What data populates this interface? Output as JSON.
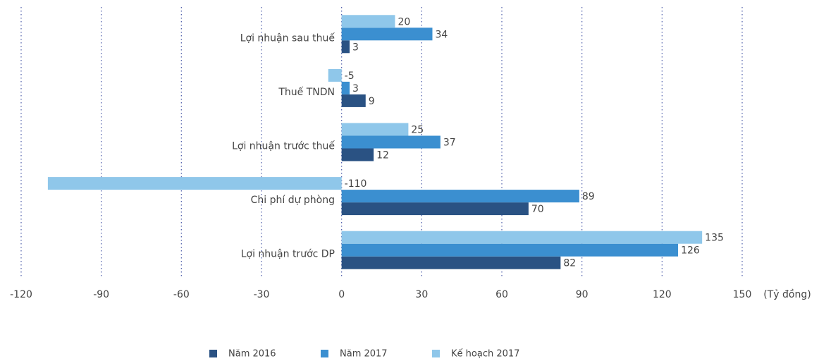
{
  "chart_data": {
    "type": "barh",
    "categories": [
      "Lợi nhuận sau thuế",
      "Thuế TNDN",
      "Lợi nhuận trước thuế",
      "Chi phí dự phòng",
      "Lợi nhuận trước DP"
    ],
    "series": [
      {
        "name": "Năm 2016",
        "color": "#2a5283",
        "values": [
          3,
          9,
          12,
          70,
          82
        ]
      },
      {
        "name": "Năm 2017",
        "color": "#3b8fd0",
        "values": [
          34,
          3,
          37,
          89,
          126
        ]
      },
      {
        "name": "Kế hoạch 2017",
        "color": "#8fc7ea",
        "values": [
          20,
          -5,
          25,
          -110,
          135
        ]
      }
    ],
    "xlabel": "(Tỷ đồng)",
    "xlim": [
      -120,
      150
    ],
    "xticks": [
      -120,
      -90,
      -60,
      -30,
      0,
      30,
      60,
      90,
      120,
      150
    ],
    "grid": true,
    "legend": "bottom"
  }
}
